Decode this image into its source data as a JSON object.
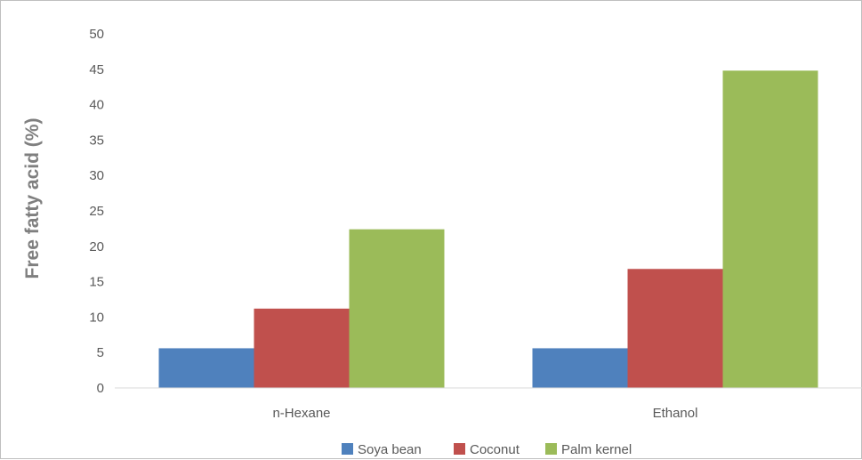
{
  "chart_data": {
    "type": "bar",
    "title": "",
    "xlabel": "",
    "ylabel": "Free fatty acid (%)",
    "categories": [
      "n-Hexane",
      "Ethanol"
    ],
    "series": [
      {
        "name": "Soya bean",
        "color": "#4f81bd",
        "values": [
          5.6,
          5.6
        ]
      },
      {
        "name": "Coconut",
        "color": "#c0504d",
        "values": [
          11.2,
          16.8
        ]
      },
      {
        "name": "Palm kernel",
        "color": "#9bbb59",
        "values": [
          22.4,
          44.8
        ]
      }
    ],
    "ylim": [
      0,
      50
    ],
    "yticks": [
      0,
      5,
      10,
      15,
      20,
      25,
      30,
      35,
      40,
      45,
      50
    ],
    "grid": false,
    "legend": "bottom"
  }
}
